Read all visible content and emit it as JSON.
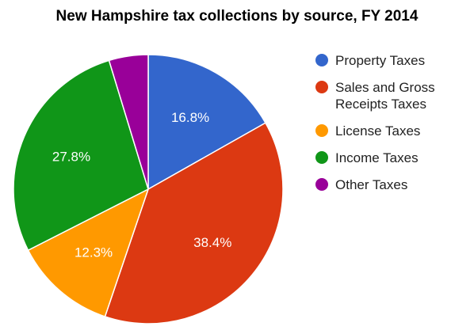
{
  "chart_data": {
    "type": "pie",
    "title": "New Hampshire tax collections by source, FY 2014",
    "slices": [
      {
        "label": "Property Taxes",
        "value": 16.8,
        "display": "16.8%",
        "color": "#3366cc"
      },
      {
        "label": "Sales and Gross Receipts Taxes",
        "value": 38.4,
        "display": "38.4%",
        "color": "#dc3912"
      },
      {
        "label": "License Taxes",
        "value": 12.3,
        "display": "12.3%",
        "color": "#ff9900"
      },
      {
        "label": "Income Taxes",
        "value": 27.8,
        "display": "27.8%",
        "color": "#109618"
      },
      {
        "label": "Other Taxes",
        "value": 4.7,
        "display": "",
        "color": "#990099"
      }
    ],
    "legend_position": "right",
    "start_angle": "12 o'clock, clockwise"
  }
}
